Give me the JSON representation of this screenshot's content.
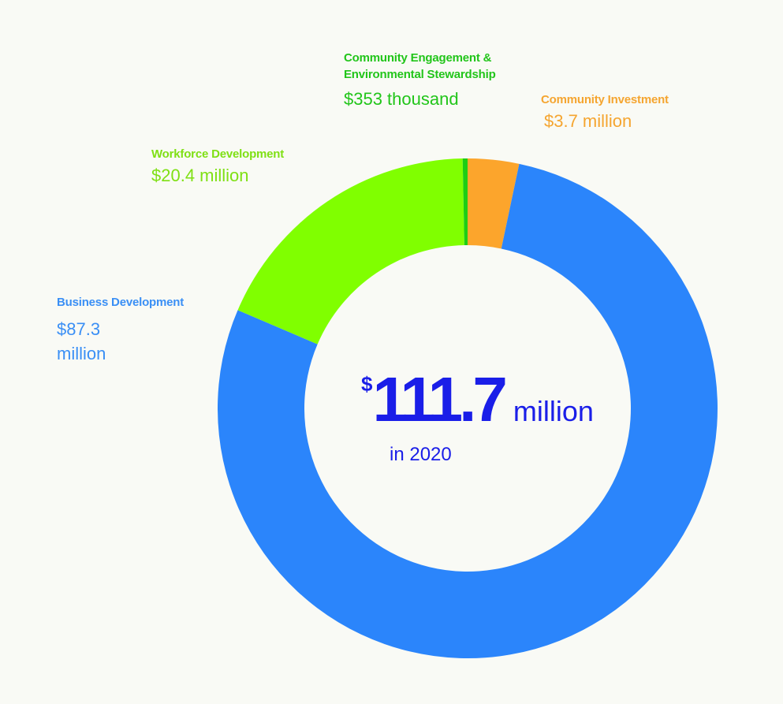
{
  "chart_data": {
    "type": "pie",
    "style": "donut",
    "categories": [
      "Community Investment",
      "Business Development",
      "Workforce Development",
      "Community Engagement & Environmental Stewardship"
    ],
    "values": [
      3.7,
      87.3,
      20.4,
      0.353
    ],
    "value_labels": [
      "$3.7 million",
      "$87.3 million",
      "$20.4 million",
      "$353 thousand"
    ],
    "colors": [
      "#fca52c",
      "#2b85fb",
      "#80ff00",
      "#1dcd14"
    ],
    "total": {
      "currency": "$",
      "amount": "111.7",
      "unit": "million",
      "caption": "in 2020"
    }
  }
}
